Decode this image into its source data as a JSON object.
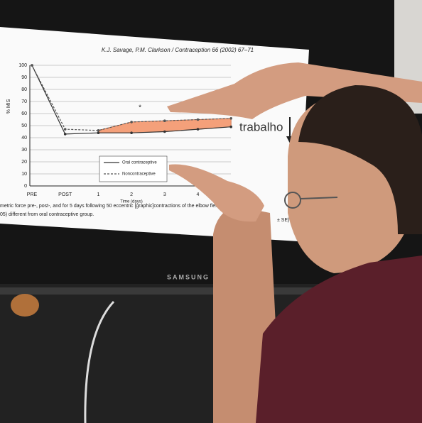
{
  "screen": {
    "header": "K.J. Savage, P.M. Clarkson / Contraception 66 (2002) 67–71",
    "chart": {
      "type": "line",
      "y_label": "% MIS",
      "x_label": "Time (days)",
      "categories": [
        "PRE",
        "POST",
        "1",
        "2",
        "3",
        "4",
        null
      ],
      "ylim": [
        0,
        100
      ],
      "yticks": [
        0,
        10,
        20,
        30,
        40,
        50,
        60,
        70,
        80,
        90,
        100
      ],
      "series": [
        {
          "name": "Oral contraceptive",
          "color": "#333333",
          "values": [
            100,
            43,
            44,
            44,
            45,
            47,
            49
          ]
        },
        {
          "name": "Noncontraceptive",
          "color": "#555555",
          "values": [
            100,
            47,
            46,
            53,
            54,
            55,
            56
          ]
        }
      ],
      "fill_color": "#f4a07a",
      "annotation": "*"
    },
    "caption": [
      "metric force pre-, post-, and for 5 days following 50 eccentric [graphic]contractions of the elbow flexors. Val",
      "05) different from oral contraceptive group.",
      "± SE)"
    ]
  },
  "annotation": "trabalho",
  "tv_brand": "SAMSUNG"
}
